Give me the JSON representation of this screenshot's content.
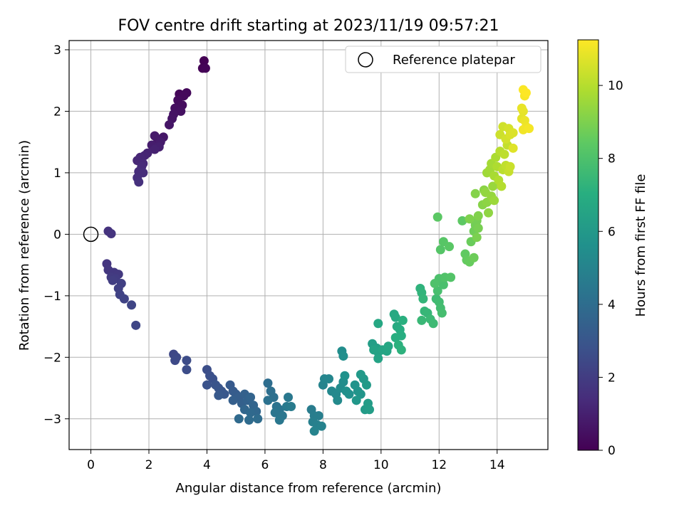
{
  "chart_data": {
    "type": "scatter",
    "title": "FOV centre drift starting at 2023/11/19 09:57:21",
    "xlabel": "Angular distance from reference (arcmin)",
    "ylabel": "Rotation from reference (arcmin)",
    "xlim": [
      -0.75,
      15.75
    ],
    "ylim": [
      -3.5,
      3.15
    ],
    "xticks": [
      "0",
      "2",
      "4",
      "6",
      "8",
      "10",
      "12",
      "14"
    ],
    "yticks": [
      "−3",
      "−2",
      "−1",
      "0",
      "1",
      "2",
      "3"
    ],
    "grid": true,
    "legend": {
      "position": "top-right",
      "entries": [
        "Reference platepar"
      ]
    },
    "reference_point": {
      "x": 0,
      "y": 0,
      "marker": "open-circle"
    },
    "colorbar": {
      "label": "Hours from first FF file",
      "range": [
        0,
        11.25
      ],
      "ticks": [
        "0",
        "2",
        "4",
        "6",
        "8",
        "10"
      ],
      "colormap": "viridis"
    },
    "series": [
      {
        "points": [
          [
            3.9,
            2.82
          ],
          [
            3.85,
            2.7
          ],
          [
            3.95,
            2.7
          ],
          [
            3.05,
            2.28
          ],
          [
            3.3,
            2.3
          ],
          [
            3.2,
            2.25
          ],
          [
            3.0,
            2.18
          ],
          [
            3.15,
            2.1
          ],
          [
            2.9,
            2.05
          ],
          [
            3.1,
            2.0
          ],
          [
            2.85,
            1.95
          ],
          [
            2.8,
            1.88
          ],
          [
            2.7,
            1.78
          ],
          [
            2.5,
            1.58
          ],
          [
            2.3,
            1.55
          ],
          [
            2.2,
            1.6
          ],
          [
            2.4,
            1.5
          ],
          [
            2.1,
            1.45
          ],
          [
            2.35,
            1.42
          ],
          [
            2.2,
            1.38
          ],
          [
            1.95,
            1.32
          ],
          [
            1.85,
            1.28
          ],
          [
            1.7,
            1.25
          ],
          [
            1.6,
            1.2
          ],
          [
            1.8,
            1.15
          ],
          [
            1.75,
            1.1
          ],
          [
            1.65,
            1.02
          ],
          [
            1.8,
            1.0
          ],
          [
            1.6,
            0.92
          ],
          [
            1.65,
            0.85
          ],
          [
            0.6,
            0.05
          ],
          [
            0.7,
            0.01
          ],
          [
            0.55,
            -0.48
          ],
          [
            0.6,
            -0.58
          ],
          [
            0.8,
            -0.62
          ],
          [
            0.95,
            -0.65
          ],
          [
            0.7,
            -0.7
          ],
          [
            0.85,
            -0.72
          ],
          [
            0.75,
            -0.75
          ],
          [
            1.05,
            -0.8
          ],
          [
            0.95,
            -0.88
          ],
          [
            1.0,
            -0.98
          ],
          [
            1.15,
            -1.05
          ],
          [
            1.4,
            -1.15
          ],
          [
            1.55,
            -1.48
          ],
          [
            2.85,
            -1.95
          ],
          [
            2.95,
            -2.0
          ],
          [
            2.9,
            -2.05
          ],
          [
            3.3,
            -2.05
          ],
          [
            3.3,
            -2.2
          ],
          [
            4.0,
            -2.2
          ],
          [
            4.1,
            -2.3
          ],
          [
            4.2,
            -2.35
          ],
          [
            4.0,
            -2.45
          ],
          [
            4.3,
            -2.45
          ],
          [
            4.4,
            -2.5
          ],
          [
            4.5,
            -2.55
          ],
          [
            4.6,
            -2.6
          ],
          [
            4.4,
            -2.62
          ],
          [
            4.8,
            -2.45
          ],
          [
            4.9,
            -2.55
          ],
          [
            5.0,
            -2.6
          ],
          [
            5.1,
            -2.65
          ],
          [
            4.9,
            -2.7
          ],
          [
            5.2,
            -2.75
          ],
          [
            5.3,
            -2.6
          ],
          [
            5.4,
            -2.7
          ],
          [
            5.5,
            -2.65
          ],
          [
            5.6,
            -2.78
          ],
          [
            5.3,
            -2.85
          ],
          [
            5.7,
            -2.88
          ],
          [
            5.5,
            -2.9
          ],
          [
            5.1,
            -3.0
          ],
          [
            5.45,
            -3.02
          ],
          [
            5.75,
            -3.0
          ],
          [
            6.1,
            -2.42
          ],
          [
            6.2,
            -2.55
          ],
          [
            6.3,
            -2.65
          ],
          [
            6.1,
            -2.7
          ],
          [
            6.4,
            -2.8
          ],
          [
            6.5,
            -2.85
          ],
          [
            6.35,
            -2.9
          ],
          [
            6.6,
            -2.95
          ],
          [
            6.5,
            -3.02
          ],
          [
            6.8,
            -2.65
          ],
          [
            6.75,
            -2.8
          ],
          [
            6.9,
            -2.8
          ],
          [
            7.6,
            -2.85
          ],
          [
            7.7,
            -2.95
          ],
          [
            7.85,
            -2.95
          ],
          [
            7.65,
            -3.05
          ],
          [
            7.8,
            -3.1
          ],
          [
            7.95,
            -3.12
          ],
          [
            7.7,
            -3.2
          ],
          [
            8.0,
            -2.45
          ],
          [
            8.05,
            -2.35
          ],
          [
            8.2,
            -2.35
          ],
          [
            8.3,
            -2.55
          ],
          [
            8.45,
            -2.6
          ],
          [
            8.5,
            -2.7
          ],
          [
            8.6,
            -2.5
          ],
          [
            8.7,
            -2.4
          ],
          [
            8.65,
            -1.9
          ],
          [
            8.7,
            -1.98
          ],
          [
            8.8,
            -2.55
          ],
          [
            8.9,
            -2.6
          ],
          [
            8.75,
            -2.3
          ],
          [
            9.1,
            -2.45
          ],
          [
            9.2,
            -2.55
          ],
          [
            9.3,
            -2.6
          ],
          [
            9.15,
            -2.7
          ],
          [
            9.4,
            -2.35
          ],
          [
            9.3,
            -2.28
          ],
          [
            9.5,
            -2.45
          ],
          [
            9.45,
            -2.85
          ],
          [
            9.55,
            -2.75
          ],
          [
            9.6,
            -2.85
          ],
          [
            9.7,
            -1.78
          ],
          [
            9.85,
            -1.85
          ],
          [
            9.9,
            -1.92
          ],
          [
            9.75,
            -1.88
          ],
          [
            9.9,
            -2.02
          ],
          [
            10.05,
            -1.88
          ],
          [
            10.2,
            -1.9
          ],
          [
            10.25,
            -1.82
          ],
          [
            9.9,
            -1.45
          ],
          [
            10.45,
            -1.3
          ],
          [
            10.5,
            -1.35
          ],
          [
            10.55,
            -1.5
          ],
          [
            10.65,
            -1.55
          ],
          [
            10.7,
            -1.65
          ],
          [
            10.5,
            -1.68
          ],
          [
            10.75,
            -1.4
          ],
          [
            10.6,
            -1.8
          ],
          [
            10.7,
            -1.88
          ],
          [
            11.35,
            -0.88
          ],
          [
            11.4,
            -0.95
          ],
          [
            11.45,
            -1.05
          ],
          [
            11.5,
            -1.25
          ],
          [
            11.6,
            -1.28
          ],
          [
            11.4,
            -1.4
          ],
          [
            11.7,
            -1.38
          ],
          [
            11.8,
            -1.45
          ],
          [
            11.9,
            -1.05
          ],
          [
            12.0,
            -1.1
          ],
          [
            12.05,
            -1.2
          ],
          [
            12.1,
            -1.28
          ],
          [
            11.95,
            -0.92
          ],
          [
            12.15,
            -0.82
          ],
          [
            12.0,
            -0.72
          ],
          [
            11.85,
            -0.8
          ],
          [
            12.2,
            -0.7
          ],
          [
            12.4,
            -0.7
          ],
          [
            12.05,
            -0.25
          ],
          [
            12.15,
            -0.12
          ],
          [
            12.35,
            -0.2
          ],
          [
            11.95,
            0.28
          ],
          [
            12.8,
            0.22
          ],
          [
            12.9,
            -0.32
          ],
          [
            12.95,
            -0.42
          ],
          [
            13.05,
            -0.45
          ],
          [
            13.1,
            -0.12
          ],
          [
            13.2,
            -0.38
          ],
          [
            13.2,
            0.05
          ],
          [
            13.25,
            0.15
          ],
          [
            13.3,
            0.22
          ],
          [
            13.35,
            0.1
          ],
          [
            13.3,
            -0.05
          ],
          [
            13.05,
            0.25
          ],
          [
            13.35,
            0.3
          ],
          [
            13.25,
            0.66
          ],
          [
            13.5,
            0.48
          ],
          [
            13.55,
            0.72
          ],
          [
            13.65,
            0.52
          ],
          [
            13.7,
            0.35
          ],
          [
            13.6,
            0.68
          ],
          [
            13.8,
            0.62
          ],
          [
            13.85,
            0.78
          ],
          [
            13.9,
            0.55
          ],
          [
            13.65,
            1.0
          ],
          [
            13.75,
            1.05
          ],
          [
            13.8,
            1.15
          ],
          [
            13.9,
            0.95
          ],
          [
            13.95,
            1.25
          ],
          [
            14.0,
            1.1
          ],
          [
            14.05,
            0.88
          ],
          [
            14.15,
            0.78
          ],
          [
            14.1,
            1.35
          ],
          [
            14.2,
            1.05
          ],
          [
            14.25,
            1.3
          ],
          [
            14.3,
            1.12
          ],
          [
            14.35,
            1.45
          ],
          [
            14.4,
            1.02
          ],
          [
            14.45,
            1.1
          ],
          [
            14.1,
            1.62
          ],
          [
            14.2,
            1.75
          ],
          [
            14.3,
            1.55
          ],
          [
            14.4,
            1.72
          ],
          [
            14.45,
            1.62
          ],
          [
            14.55,
            1.65
          ],
          [
            14.55,
            1.4
          ],
          [
            14.85,
            1.88
          ],
          [
            14.9,
            2.0
          ],
          [
            14.85,
            2.05
          ],
          [
            14.95,
            1.85
          ],
          [
            15.0,
            1.75
          ],
          [
            14.9,
            1.7
          ],
          [
            15.1,
            1.72
          ],
          [
            14.95,
            2.25
          ],
          [
            14.9,
            2.35
          ],
          [
            15.0,
            2.3
          ]
        ],
        "hours_range": [
          0,
          11.25
        ]
      }
    ]
  }
}
